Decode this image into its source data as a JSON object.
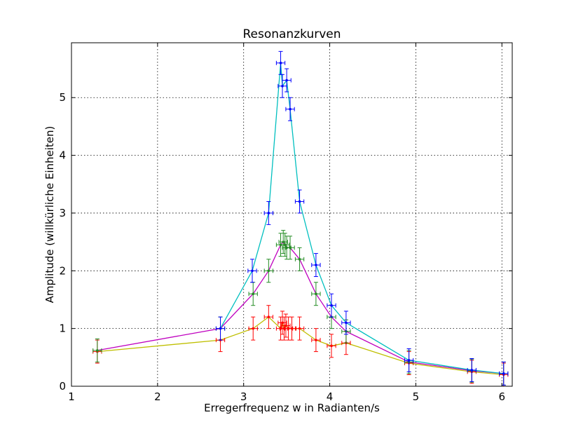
{
  "chart_data": {
    "type": "line",
    "title": "Resonanzkurven",
    "xlabel": "Erregerfrequenz w in Radianten/s",
    "ylabel": "Amplitude (willkürliche Einheiten)",
    "xlim": [
      1,
      6.12
    ],
    "ylim": [
      0,
      5.95
    ],
    "xticks": [
      1,
      2,
      3,
      4,
      5,
      6
    ],
    "yticks": [
      0,
      1,
      2,
      3,
      4,
      5
    ],
    "grid": true,
    "legend": "none",
    "xerr": 0.05,
    "series": [
      {
        "line_color": "#00bfbf",
        "point_color": "#0000ff",
        "yerr": 0.2,
        "points": [
          [
            2.73,
            1.0
          ],
          [
            3.1,
            2.0
          ],
          [
            3.29,
            3.0
          ],
          [
            3.43,
            5.6
          ],
          [
            3.45,
            5.2
          ],
          [
            3.5,
            5.3
          ],
          [
            3.54,
            4.8
          ],
          [
            3.65,
            3.2
          ],
          [
            3.84,
            2.1
          ],
          [
            4.02,
            1.4
          ],
          [
            4.19,
            1.1
          ],
          [
            4.92,
            0.45
          ],
          [
            5.65,
            0.28
          ],
          [
            6.02,
            0.22
          ]
        ]
      },
      {
        "line_color": "#bf00bf",
        "point_color": "#228b22",
        "yerr": 0.2,
        "points": [
          [
            1.3,
            0.62
          ],
          [
            2.73,
            1.0
          ],
          [
            3.11,
            1.6
          ],
          [
            3.29,
            2.0
          ],
          [
            3.43,
            2.45
          ],
          [
            3.46,
            2.5
          ],
          [
            3.48,
            2.45
          ],
          [
            3.5,
            2.4
          ],
          [
            3.54,
            2.4
          ],
          [
            3.65,
            2.2
          ],
          [
            3.84,
            1.6
          ],
          [
            4.02,
            1.2
          ],
          [
            4.19,
            0.95
          ],
          [
            4.92,
            0.42
          ],
          [
            5.65,
            0.27
          ],
          [
            6.02,
            0.22
          ]
        ]
      },
      {
        "line_color": "#bfbf00",
        "point_color": "#ff0000",
        "yerr": 0.2,
        "points": [
          [
            1.3,
            0.6
          ],
          [
            2.73,
            0.8
          ],
          [
            3.11,
            1.0
          ],
          [
            3.29,
            1.2
          ],
          [
            3.43,
            1.0
          ],
          [
            3.45,
            1.1
          ],
          [
            3.47,
            1.0
          ],
          [
            3.49,
            1.05
          ],
          [
            3.52,
            1.0
          ],
          [
            3.56,
            1.0
          ],
          [
            3.65,
            1.0
          ],
          [
            3.84,
            0.8
          ],
          [
            4.02,
            0.7
          ],
          [
            4.19,
            0.75
          ],
          [
            4.92,
            0.4
          ],
          [
            5.65,
            0.25
          ],
          [
            6.02,
            0.2
          ]
        ]
      }
    ]
  }
}
